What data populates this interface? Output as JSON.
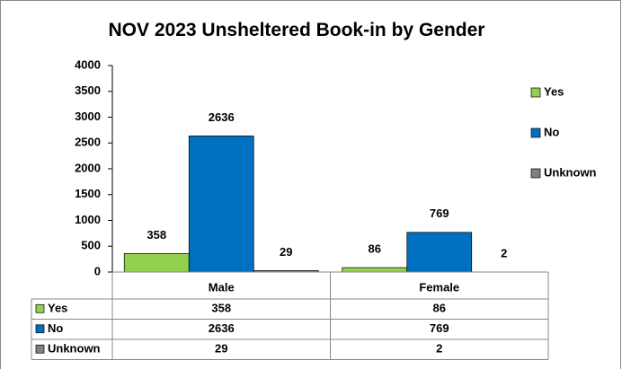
{
  "chart_data": {
    "type": "bar",
    "title": "NOV 2023 Unsheltered Book-in by Gender",
    "categories": [
      "Male",
      "Female"
    ],
    "series": [
      {
        "name": "Yes",
        "color": "#92d050",
        "values": [
          358,
          86
        ]
      },
      {
        "name": "No",
        "color": "#0070c0",
        "values": [
          2636,
          769
        ]
      },
      {
        "name": "Unknown",
        "color": "#808080",
        "values": [
          29,
          2
        ]
      }
    ],
    "ylim": [
      0,
      4000
    ],
    "yticks": [
      0,
      500,
      1000,
      1500,
      2000,
      2500,
      3000,
      3500,
      4000
    ],
    "legend": "right",
    "data_table": true
  }
}
